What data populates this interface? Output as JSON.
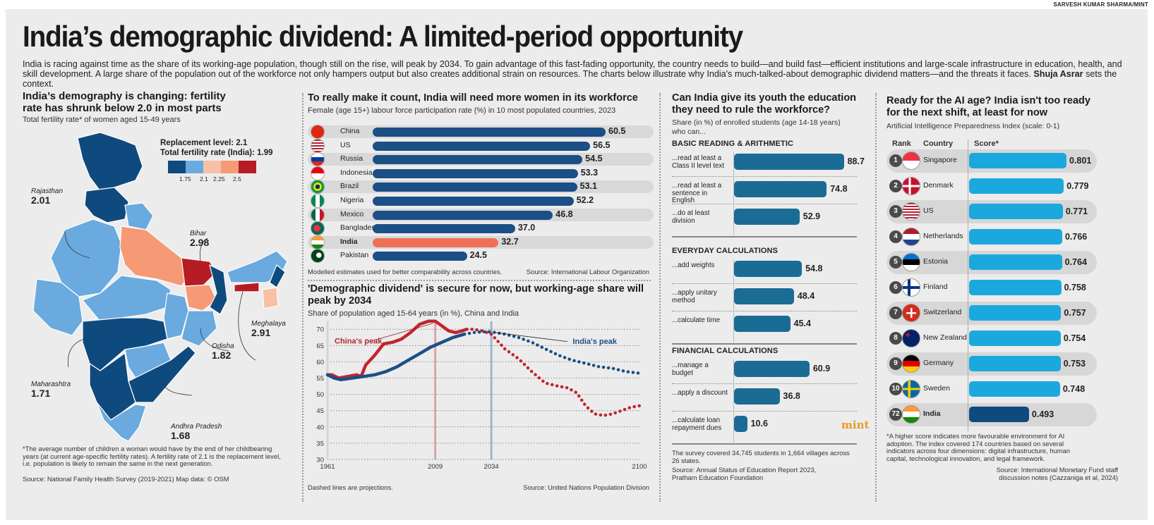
{
  "credit": "SARVESH KUMAR SHARMA/MINT",
  "title": "India’s demographic dividend: A limited-period opportunity",
  "intro": {
    "text": "India is racing against time as the share of its working-age population, though still on the rise, will peak by 2034. To gain advantage of this fast-fading opportunity, the country needs to build—and build fast—efficient institutions and large-scale infrastructure in education, health, and skill development. A large share of the population out of the workforce not only hampers output but also creates additional strain on resources. The charts below illustrate why India's much-talked-about demographic dividend matters—and the threats it faces.",
    "author": "Shuja Asrar",
    "tail": "sets the context."
  },
  "map": {
    "title": "India’s demography is changing: fertility rate has shrunk below 2.0 in most parts",
    "subtitle": "Total fertility rate* of women aged 15-49 years",
    "replacement": "Replacement level: 2.1",
    "india_tfr": "Total fertility rate (India): 1.99",
    "legend_colors": [
      "#0f4a7e",
      "#6aaade",
      "#f6c1a5",
      "#f59a75",
      "#b51c24"
    ],
    "legend_ticks": [
      "1.75",
      "2.1",
      "2.25",
      "2.5"
    ],
    "labels": [
      {
        "state": "Rajasthan",
        "value": "2.01"
      },
      {
        "state": "Bihar",
        "value": "2.98"
      },
      {
        "state": "Meghalaya",
        "value": "2.91"
      },
      {
        "state": "Odisha",
        "value": "1.82"
      },
      {
        "state": "Maharashtra",
        "value": "1.71"
      },
      {
        "state": "Andhra Pradesh",
        "value": "1.68"
      }
    ],
    "footnote": "*The average number of children a woman would have by the end of her childbearing years (at current age-specific fertility rates). A fertility rate of 2.1 is the replacement level, i.e. population is likely to remain the same in the next generation.",
    "source": "Source: National Family Health Survey (2019-2021)  Map data: © OSM"
  },
  "chart_data": [
    {
      "type": "bar",
      "title": "To really make it count, India will need more women in its workforce",
      "subtitle": "Female (age 15+) labour force participation rate (%) in 10 most populated countries, 2023",
      "categories": [
        "China",
        "US",
        "Russia",
        "Indonesia",
        "Brazil",
        "Nigeria",
        "Mexico",
        "Bangladesh",
        "India",
        "Pakistan"
      ],
      "values": [
        60.5,
        56.5,
        54.5,
        53.3,
        53.1,
        52.2,
        46.8,
        37.0,
        32.7,
        24.5
      ],
      "value_labels": [
        "60.5",
        "56.5",
        "54.5",
        "53.3",
        "53.1",
        "52.2",
        "46.8",
        "37.0",
        "32.7",
        "24.5"
      ],
      "highlight": "India",
      "colors": {
        "bar": "#1b4f86",
        "highlight": "#f07056"
      },
      "note": "Modelled estimates used for better comparability across countries.",
      "source": "Source: International Labour Organization"
    },
    {
      "type": "line",
      "title": "'Demographic dividend' is secure for now, but working-age share will peak by 2034",
      "subtitle": "Share of population aged 15-64 years (in %), China and India",
      "xlabel": "",
      "ylabel": "",
      "xlim": [
        1961,
        2100
      ],
      "ylim": [
        30,
        72
      ],
      "yticks": [
        30,
        35,
        40,
        45,
        50,
        55,
        60,
        65,
        70
      ],
      "xticks": [
        1961,
        2009,
        2034,
        2100
      ],
      "markers": [
        {
          "year": 2009,
          "label": "China's peak",
          "color": "#b2262c"
        },
        {
          "year": 2034,
          "label": "India's peak",
          "color": "#1b4f86"
        }
      ],
      "projection_start": 2023,
      "series": [
        {
          "name": "China",
          "color": "#c1262c",
          "x": [
            1961,
            1963,
            1966,
            1970,
            1974,
            1976,
            1978,
            1982,
            1986,
            1990,
            1994,
            1998,
            2002,
            2006,
            2009,
            2012,
            2015,
            2018,
            2021,
            2023,
            2026,
            2030,
            2034,
            2040,
            2046,
            2052,
            2058,
            2064,
            2068,
            2072,
            2076,
            2080,
            2084,
            2088,
            2092,
            2096,
            2100
          ],
          "y": [
            56,
            56,
            55,
            55.5,
            56,
            55.5,
            59,
            62,
            65.5,
            66,
            67,
            69,
            71.5,
            72.5,
            72.5,
            71,
            69.5,
            69,
            69.5,
            70,
            70,
            69.5,
            68.5,
            64,
            61,
            57,
            53.5,
            52.5,
            52,
            50.5,
            46.5,
            44,
            43.5,
            44,
            45,
            46,
            46.5
          ]
        },
        {
          "name": "India",
          "color": "#1b4f86",
          "x": [
            1961,
            1964,
            1967,
            1972,
            1977,
            1982,
            1987,
            1992,
            1997,
            2002,
            2007,
            2012,
            2017,
            2022,
            2026,
            2030,
            2034,
            2040,
            2046,
            2052,
            2058,
            2064,
            2070,
            2076,
            2082,
            2088,
            2094,
            2100
          ],
          "y": [
            56,
            55,
            54.5,
            55,
            55.5,
            56,
            57,
            58.5,
            60.5,
            62.5,
            64.5,
            66,
            67.5,
            68.5,
            69,
            69.2,
            69.2,
            68.5,
            67.5,
            66,
            64,
            62,
            60.5,
            59.5,
            58.5,
            58,
            57,
            56.5
          ]
        }
      ],
      "note": "Dashed lines are projections.",
      "source": "Source: United Nations Population Division"
    },
    {
      "type": "bar",
      "title": "Can India give its youth the education they need to rule the workforce?",
      "subtitle": "Share (in %) of enrolled students (age 14-18 years) who can...",
      "groups": [
        {
          "name": "BASIC READING & ARITHMETIC",
          "categories": [
            "...read at least a Class II level text",
            "...read at least a sentence in English",
            "...do at least division"
          ],
          "values": [
            88.7,
            74.8,
            52.9
          ]
        },
        {
          "name": "EVERYDAY CALCULATIONS",
          "categories": [
            "...add weights",
            "...apply unitary method",
            "...calculate time"
          ],
          "values": [
            54.8,
            48.4,
            45.4
          ]
        },
        {
          "name": "FINANCIAL CALCULATIONS",
          "categories": [
            "...manage a budget",
            "...apply a discount",
            "...calculate loan repayment dues"
          ],
          "values": [
            60.9,
            36.8,
            10.6
          ]
        }
      ],
      "note": "The survey covered 34,745 students in 1,664 villages across 26 states.",
      "source": "Source: Annual Status of Education Report 2023, Pratham Education Foundation",
      "logo": "mint",
      "color": "#1a6c95"
    },
    {
      "type": "bar",
      "title": "Ready for the AI age? India isn't too ready for the next shift, at least for now",
      "subtitle": "Artificial Intelligence Preparedness Index (scale: 0-1)",
      "headers": [
        "Rank",
        "Country",
        "Score*"
      ],
      "ranks": [
        1,
        2,
        3,
        4,
        5,
        6,
        7,
        8,
        9,
        10,
        72
      ],
      "categories": [
        "Singapore",
        "Denmark",
        "US",
        "Netherlands",
        "Estonia",
        "Finland",
        "Switzerland",
        "New Zealand",
        "Germany",
        "Sweden",
        "India"
      ],
      "values": [
        0.801,
        0.779,
        0.771,
        0.766,
        0.764,
        0.758,
        0.757,
        0.754,
        0.753,
        0.748,
        0.493
      ],
      "value_labels": [
        "0.801",
        "0.779",
        "0.771",
        "0.766",
        "0.764",
        "0.758",
        "0.757",
        "0.754",
        "0.753",
        "0.748",
        "0.493"
      ],
      "highlight": "India",
      "colors": {
        "bar": "#1ba9dd",
        "highlight": "#0f4a7e"
      },
      "note": "*A higher score indicates more favourable environment for AI adoption. The index covered 174 countries based on several indicators across four dimensions: digital infrastructure, human capital, technological innovation, and legal framework.",
      "source": "Source: International Monetary Fund staff discussion notes (Cazzaniga et al, 2024)"
    }
  ]
}
